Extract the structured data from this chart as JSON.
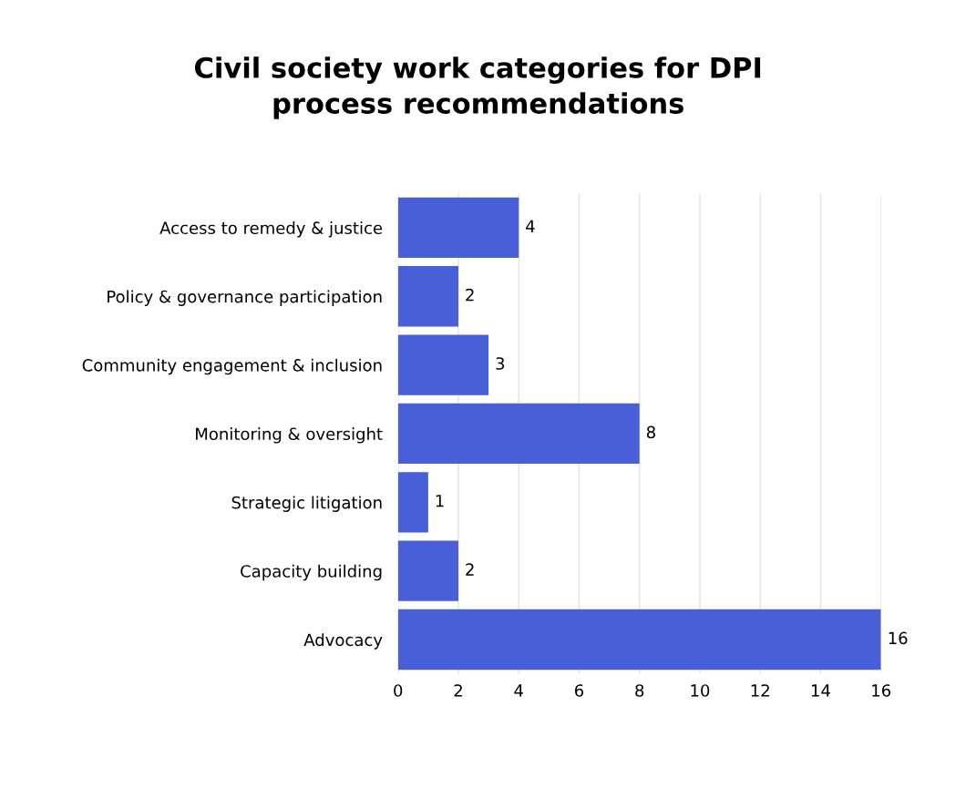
{
  "chart_data": {
    "type": "bar",
    "orientation": "horizontal",
    "title": "Civil society work categories for DPI\nprocess recommendations",
    "categories": [
      "Access to remedy & justice",
      "Policy & governance participation",
      "Community engagement & inclusion",
      "Monitoring & oversight",
      "Strategic litigation",
      "Capacity building",
      "Advocacy"
    ],
    "values": [
      4,
      2,
      3,
      8,
      1,
      2,
      16
    ],
    "color": "#485fd8",
    "xlim": [
      0,
      16
    ],
    "xticks": [
      0,
      2,
      4,
      6,
      8,
      10,
      12,
      14,
      16
    ],
    "grid": "x",
    "data_labels": true,
    "legend": false
  }
}
